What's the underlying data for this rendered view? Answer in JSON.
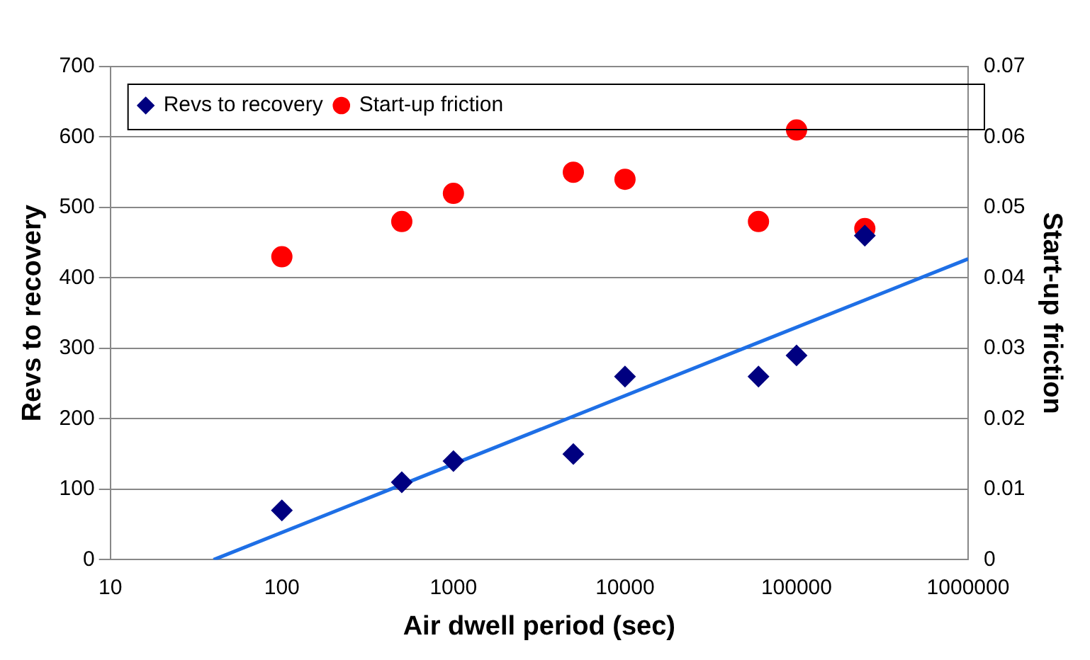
{
  "chart_data": {
    "type": "scatter",
    "xlabel": "Air dwell period (sec)",
    "ylabel": "Revs to recovery",
    "y2label": "Start-up friction",
    "x": [
      100,
      500,
      1000,
      5000,
      10000,
      60000,
      100000,
      250000
    ],
    "log": "x",
    "xlim": [
      10,
      1000000
    ],
    "xticks": [
      10,
      100,
      1000,
      10000,
      100000,
      1000000
    ],
    "ylim": [
      0,
      700
    ],
    "yticks": [
      0,
      100,
      200,
      300,
      400,
      500,
      600,
      700
    ],
    "y2lim": [
      0,
      0.07
    ],
    "y2ticks": [
      0,
      0.01,
      0.02,
      0.03,
      0.04,
      0.05,
      0.06,
      0.07
    ],
    "grid": "y",
    "legend": "top left",
    "series": [
      {
        "name": "Revs to recovery",
        "color": "#000080",
        "marker": "diamond",
        "values": [
          70,
          110,
          140,
          150,
          260,
          260,
          290,
          460
        ]
      },
      {
        "name": "Start-up friction",
        "color": "#ff0000",
        "marker": "circle",
        "axis": "y2",
        "values": [
          0.043,
          0.048,
          0.052,
          0.055,
          0.054,
          0.048,
          0.061,
          0.047
        ]
      },
      {
        "type": "line",
        "color": "#1e6fe6",
        "marker": "none",
        "x": [
          40,
          1000000
        ],
        "values": [
          0,
          427
        ]
      }
    ]
  }
}
